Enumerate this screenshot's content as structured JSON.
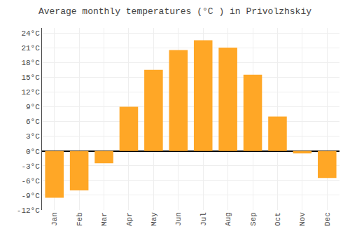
{
  "chart_data": {
    "type": "bar",
    "title": "Average monthly temperatures (°C ) in Privolzhskiy",
    "categories": [
      "Jan",
      "Feb",
      "Mar",
      "Apr",
      "May",
      "Jun",
      "Jul",
      "Aug",
      "Sep",
      "Oct",
      "Nov",
      "Dec"
    ],
    "values": [
      -9.5,
      -8.0,
      -2.5,
      9.0,
      16.5,
      20.5,
      22.5,
      21.0,
      15.5,
      7.0,
      -0.5,
      -5.5
    ],
    "color": "#FFA726",
    "ylim": [
      -12,
      25
    ],
    "yticks": [
      {
        "value": -12,
        "label": "-12°C"
      },
      {
        "value": -9,
        "label": "-9°C"
      },
      {
        "value": -6,
        "label": "-6°C"
      },
      {
        "value": -3,
        "label": "-3°C"
      },
      {
        "value": 0,
        "label": "0°C"
      },
      {
        "value": 3,
        "label": "3°C"
      },
      {
        "value": 6,
        "label": "6°C"
      },
      {
        "value": 9,
        "label": "9°C"
      },
      {
        "value": 12,
        "label": "12°C"
      },
      {
        "value": 15,
        "label": "15°C"
      },
      {
        "value": 18,
        "label": "18°C"
      },
      {
        "value": 21,
        "label": "21°C"
      },
      {
        "value": 24,
        "label": "24°C"
      }
    ],
    "grid": true
  }
}
